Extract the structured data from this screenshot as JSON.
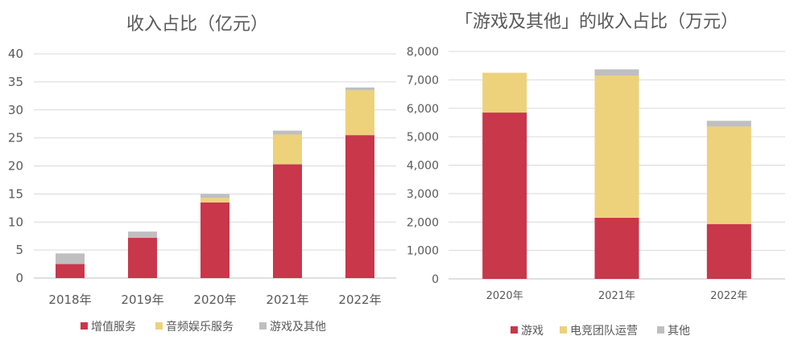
{
  "chart_data": [
    {
      "type": "bar",
      "stacked": true,
      "title": "收入占比（亿元）",
      "categories": [
        "2018年",
        "2019年",
        "2020年",
        "2021年",
        "2022年"
      ],
      "series": [
        {
          "name": "增值服务",
          "color": "#C8374A",
          "values": [
            2.5,
            7.2,
            13.5,
            20.3,
            25.5
          ]
        },
        {
          "name": "音频娱乐服务",
          "color": "#EDD27B",
          "values": [
            0,
            0,
            0.8,
            5.3,
            8.0
          ]
        },
        {
          "name": "游戏及其他",
          "color": "#BFBFBF",
          "values": [
            1.9,
            1.1,
            0.7,
            0.7,
            0.5
          ]
        }
      ],
      "yticks": [
        "0",
        "5",
        "10",
        "15",
        "20",
        "25",
        "30",
        "35",
        "40"
      ],
      "ylim": [
        0,
        40
      ],
      "grid": true,
      "legend": "bottom"
    },
    {
      "type": "bar",
      "stacked": true,
      "title": "「游戏及其他」的收入占比（万元）",
      "categories": [
        "2020年",
        "2021年",
        "2022年"
      ],
      "series": [
        {
          "name": "游戏",
          "color": "#C8374A",
          "values": [
            5850,
            2150,
            1930
          ]
        },
        {
          "name": "电竞团队运营",
          "color": "#EDD27B",
          "values": [
            1400,
            5000,
            3430
          ]
        },
        {
          "name": "其他",
          "color": "#BFBFBF",
          "values": [
            0,
            220,
            200
          ]
        }
      ],
      "yticks": [
        "0",
        "1,000",
        "2,000",
        "3,000",
        "4,000",
        "5,000",
        "6,000",
        "7,000",
        "8,000"
      ],
      "ylim": [
        0,
        8000
      ],
      "grid": true,
      "legend": "bottom"
    }
  ]
}
